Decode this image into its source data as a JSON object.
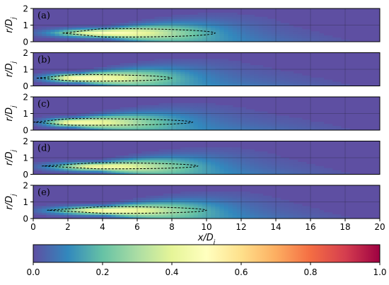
{
  "chart_data": {
    "type": "heatmap",
    "title": "",
    "xlabel": "x/D_j",
    "ylabel": "r/D_j",
    "xlim": [
      0,
      20
    ],
    "ylim": [
      0,
      2
    ],
    "x_ticks": [
      "0",
      "2",
      "4",
      "6",
      "8",
      "10",
      "12",
      "14",
      "16",
      "18",
      "20"
    ],
    "y_ticks": [
      "0",
      "1",
      "2"
    ],
    "grid": true,
    "colormap": "Spectral_r",
    "colormap_stops": [
      "#5e4fa2",
      "#3288bd",
      "#66c2a5",
      "#abdda4",
      "#e6f598",
      "#ffffbf",
      "#fee08b",
      "#fdae61",
      "#f46d43",
      "#d53e4f",
      "#9e0142"
    ],
    "colorbar": {
      "range": [
        0.0,
        1.0
      ],
      "ticks": [
        "0.0",
        "0.2",
        "0.4",
        "0.6",
        "0.8",
        "1.0"
      ]
    },
    "contour_style": "dashed",
    "contour_color": "#000000",
    "panels": [
      {
        "label": "(a)",
        "peak_x": 4.2,
        "peak_r": 0.55,
        "peak_value": 0.48,
        "contour": {
          "x_start": 1.7,
          "x_end": 10.5,
          "r_center": 0.52,
          "r_half_width": 0.28
        }
      },
      {
        "label": "(b)",
        "peak_x": 2.6,
        "peak_r": 0.5,
        "peak_value": 0.5,
        "contour": {
          "x_start": 0.2,
          "x_end": 8.0,
          "r_center": 0.47,
          "r_half_width": 0.22
        }
      },
      {
        "label": "(c)",
        "peak_x": 2.3,
        "peak_r": 0.48,
        "peak_value": 0.46,
        "contour": {
          "x_start": 0.0,
          "x_end": 9.2,
          "r_center": 0.48,
          "r_half_width": 0.22
        }
      },
      {
        "label": "(d)",
        "peak_x": 3.8,
        "peak_r": 0.48,
        "peak_value": 0.44,
        "contour": {
          "x_start": 0.5,
          "x_end": 9.5,
          "r_center": 0.5,
          "r_half_width": 0.2
        }
      },
      {
        "label": "(e)",
        "peak_x": 4.2,
        "peak_r": 0.5,
        "peak_value": 0.47,
        "contour": {
          "x_start": 0.8,
          "x_end": 10.0,
          "r_center": 0.5,
          "r_half_width": 0.22
        }
      }
    ]
  }
}
